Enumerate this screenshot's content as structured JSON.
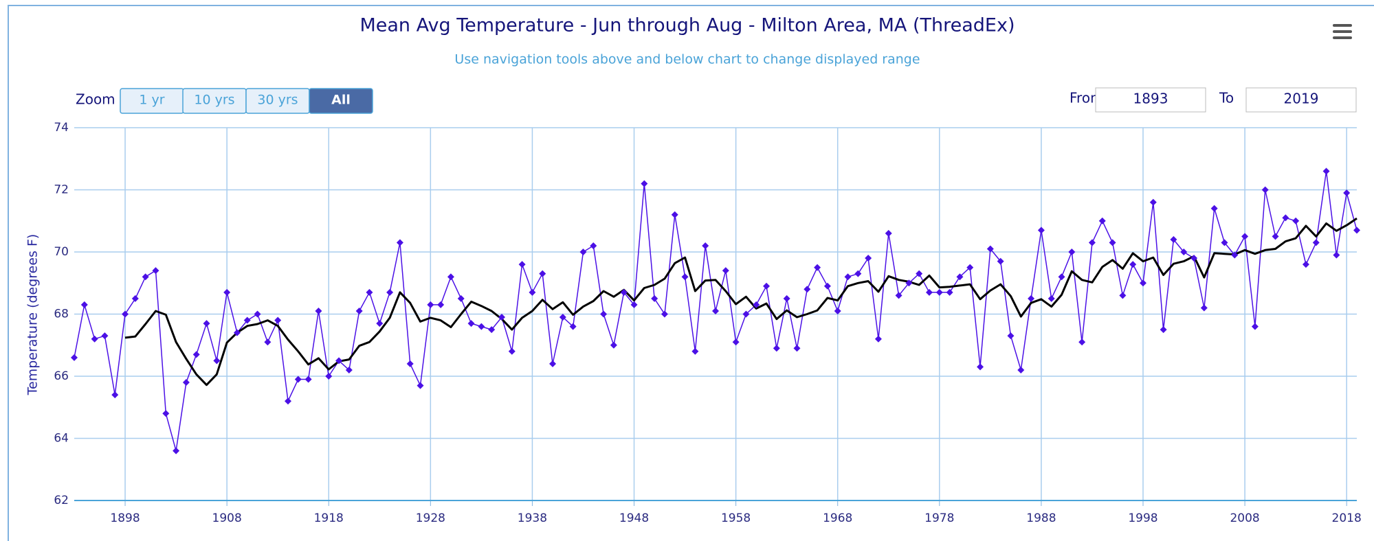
{
  "chart_data": {
    "type": "line",
    "title": "Mean Avg Temperature - Jun through Aug - Milton Area, MA (ThreadEx)",
    "subtitle": "Use navigation tools above and below chart to change displayed range",
    "y_label": "Temperature (degrees F)",
    "zoom": {
      "label": "Zoom",
      "buttons": [
        "1 yr",
        "10 yrs",
        "30 yrs",
        "All"
      ],
      "selected": 3
    },
    "range": {
      "from_label": "From",
      "from": "1893",
      "to_label": "To",
      "to": "2019"
    },
    "x": [
      1893,
      1894,
      1895,
      1896,
      1897,
      1898,
      1899,
      1900,
      1901,
      1902,
      1903,
      1904,
      1905,
      1906,
      1907,
      1908,
      1909,
      1910,
      1911,
      1912,
      1913,
      1914,
      1915,
      1916,
      1917,
      1918,
      1919,
      1920,
      1921,
      1922,
      1923,
      1924,
      1925,
      1926,
      1927,
      1928,
      1929,
      1930,
      1931,
      1932,
      1933,
      1934,
      1935,
      1936,
      1937,
      1938,
      1939,
      1940,
      1941,
      1942,
      1943,
      1944,
      1945,
      1946,
      1947,
      1948,
      1949,
      1950,
      1951,
      1952,
      1953,
      1954,
      1955,
      1956,
      1957,
      1958,
      1959,
      1960,
      1961,
      1962,
      1963,
      1964,
      1965,
      1966,
      1967,
      1968,
      1969,
      1970,
      1971,
      1972,
      1973,
      1974,
      1975,
      1976,
      1977,
      1978,
      1979,
      1980,
      1981,
      1982,
      1983,
      1984,
      1985,
      1986,
      1987,
      1988,
      1989,
      1990,
      1991,
      1992,
      1993,
      1994,
      1995,
      1996,
      1997,
      1998,
      1999,
      2000,
      2001,
      2002,
      2003,
      2004,
      2005,
      2006,
      2007,
      2008,
      2009,
      2010,
      2011,
      2012,
      2013,
      2014,
      2015,
      2016,
      2017,
      2018,
      2019
    ],
    "series": [
      {
        "color": "#4b10e6",
        "marker": "diamond",
        "values": [
          66.6,
          68.3,
          67.2,
          67.3,
          65.4,
          68.0,
          68.5,
          69.2,
          69.4,
          64.8,
          63.6,
          65.8,
          66.7,
          67.7,
          66.5,
          68.7,
          67.4,
          67.8,
          68.0,
          67.1,
          67.8,
          65.2,
          65.9,
          65.9,
          68.1,
          66.0,
          66.5,
          66.2,
          68.1,
          68.7,
          67.7,
          68.7,
          70.3,
          66.4,
          65.7,
          68.3,
          68.3,
          69.2,
          68.5,
          67.7,
          67.6,
          67.5,
          67.9,
          66.8,
          69.6,
          68.7,
          69.3,
          66.4,
          67.9,
          67.6,
          70.0,
          70.2,
          68.0,
          67.0,
          68.7,
          68.3,
          72.2,
          68.5,
          68.0,
          71.2,
          69.2,
          66.8,
          70.2,
          68.1,
          69.4,
          67.1,
          68.0,
          68.3,
          68.9,
          66.9,
          68.5,
          66.9,
          68.8,
          69.5,
          68.9,
          68.1,
          69.2,
          69.3,
          69.8,
          67.2,
          70.6,
          68.6,
          69.0,
          69.3,
          68.7,
          68.7,
          68.7,
          69.2,
          69.5,
          66.3,
          70.1,
          69.7,
          67.3,
          66.2,
          68.5,
          70.7,
          68.5,
          69.2,
          70.0,
          67.1,
          70.3,
          71.0,
          70.3,
          68.6,
          69.6,
          69.0,
          71.6,
          67.5,
          70.4,
          70.0,
          69.8,
          68.2,
          71.4,
          70.3,
          69.9,
          70.5,
          67.6,
          72.0,
          70.5,
          71.1,
          71.0,
          69.6,
          70.3,
          72.6,
          69.9,
          71.9,
          70.7
        ]
      },
      {
        "color": "#000000",
        "marker": "none",
        "values": [
          null,
          null,
          null,
          null,
          null,
          67.24,
          67.28,
          67.68,
          68.1,
          67.98,
          67.1,
          66.56,
          66.06,
          65.72,
          66.06,
          67.08,
          67.4,
          67.62,
          67.68,
          67.8,
          67.62,
          67.18,
          66.8,
          66.38,
          66.58,
          66.22,
          66.48,
          66.54,
          66.98,
          67.1,
          67.44,
          67.88,
          68.7,
          68.36,
          67.76,
          67.88,
          67.8,
          67.58,
          68.0,
          68.4,
          68.26,
          68.1,
          67.84,
          67.5,
          67.88,
          68.1,
          68.46,
          68.16,
          68.38,
          67.98,
          68.24,
          68.42,
          68.74,
          68.56,
          68.78,
          68.44,
          68.84,
          68.94,
          69.14,
          69.64,
          69.82,
          68.74,
          69.08,
          69.1,
          68.74,
          68.32,
          68.56,
          68.18,
          68.34,
          67.84,
          68.12,
          67.9,
          68.0,
          68.12,
          68.52,
          68.44,
          68.9,
          69.0,
          69.06,
          68.72,
          69.22,
          69.1,
          69.04,
          68.94,
          69.24,
          68.86,
          68.88,
          68.92,
          68.96,
          68.48,
          68.76,
          68.96,
          68.58,
          67.92,
          68.36,
          68.48,
          68.24,
          68.62,
          69.38,
          69.1,
          69.02,
          69.52,
          69.74,
          69.46,
          69.96,
          69.7,
          69.82,
          69.26,
          69.62,
          69.7,
          69.86,
          69.18,
          69.96,
          69.94,
          69.92,
          70.06,
          69.94,
          70.06,
          70.1,
          70.34,
          70.44,
          70.84,
          70.5,
          70.92,
          70.68,
          70.86,
          71.08
        ]
      }
    ],
    "xlim": [
      1893,
      2019
    ],
    "xticks": [
      1898,
      1908,
      1918,
      1928,
      1938,
      1948,
      1958,
      1968,
      1978,
      1988,
      1998,
      2008,
      2018
    ],
    "ylim": [
      62,
      74
    ],
    "yticks": [
      62,
      64,
      66,
      68,
      70,
      72,
      74
    ],
    "grid": true
  }
}
